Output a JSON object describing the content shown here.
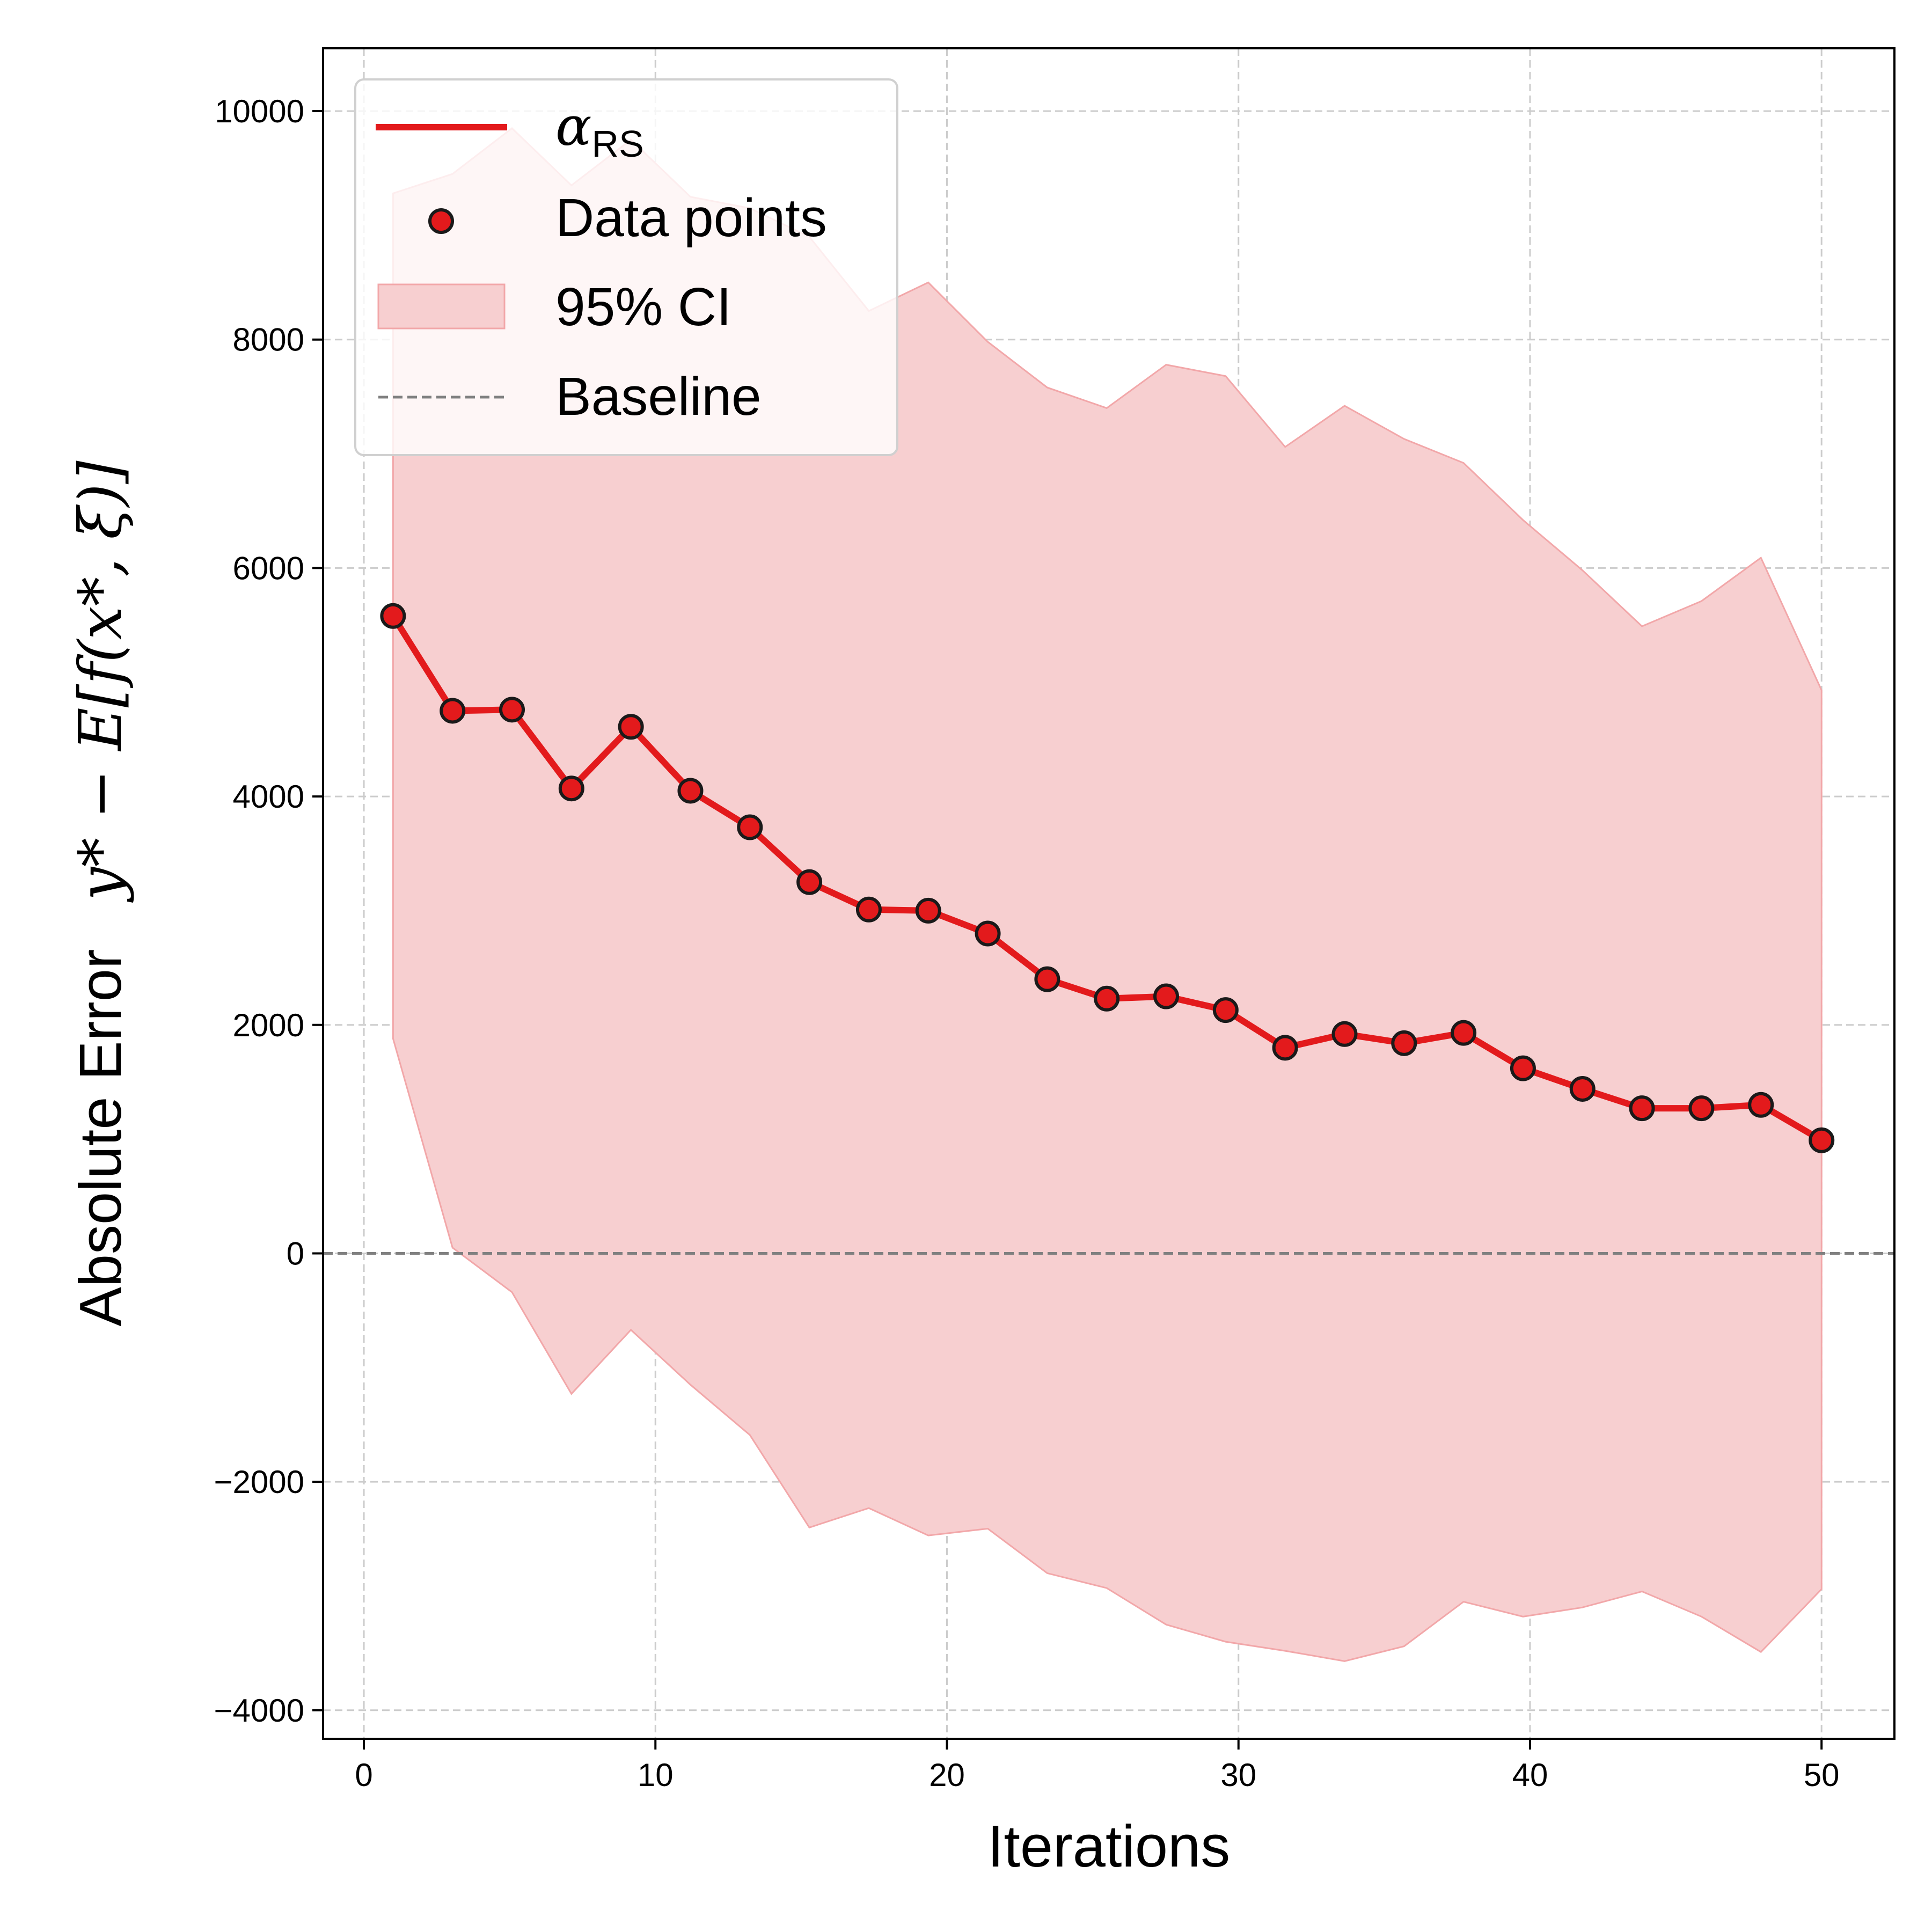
{
  "chart_data": {
    "type": "line",
    "xlabel": "Iterations",
    "ylabel_prefix": "Absolute Error",
    "ylabel_math": "y* − E[f(x*, ξ)]",
    "xlim": [
      -1.4,
      52.5
    ],
    "ylim": [
      -4250,
      10550
    ],
    "xticks": [
      0,
      10,
      20,
      30,
      40,
      50
    ],
    "yticks": [
      -4000,
      -2000,
      0,
      2000,
      4000,
      6000,
      8000,
      10000
    ],
    "ytick_labels": [
      "−4000",
      "−2000",
      "0",
      "2000",
      "4000",
      "6000",
      "8000",
      "10000"
    ],
    "grid": true,
    "legend_position": "top-left",
    "colors": {
      "line": "#e31a1c",
      "marker_fill": "#e31a1c",
      "marker_edge": "#1a1a1a",
      "ci_fill": "#f7cfd0",
      "ci_edge": "#f2a7a9",
      "baseline": "#808080",
      "grid": "#cccccc"
    },
    "legend": [
      {
        "label": "α",
        "label_sub": "RS",
        "kind": "line"
      },
      {
        "label": "Data points",
        "kind": "marker"
      },
      {
        "label": "95% CI",
        "kind": "patch"
      },
      {
        "label": "Baseline",
        "kind": "dashed"
      }
    ],
    "x": [
      1.0,
      3.04,
      5.08,
      7.12,
      9.16,
      11.2,
      13.24,
      15.28,
      17.32,
      19.36,
      21.4,
      23.44,
      25.48,
      27.52,
      29.56,
      31.6,
      33.64,
      35.68,
      37.72,
      39.76,
      41.8,
      43.84,
      45.88,
      47.92,
      50.0
    ],
    "series": [
      {
        "values": [
          5580,
          4750,
          4760,
          4070,
          4610,
          4050,
          3730,
          3250,
          3010,
          3000,
          2800,
          2400,
          2230,
          2250,
          2130,
          1800,
          1920,
          1840,
          1930,
          1620,
          1440,
          1270,
          1270,
          1300,
          990
        ]
      }
    ],
    "ci_upper": [
      9280,
      9450,
      9850,
      9350,
      9750,
      9250,
      9150,
      8900,
      8250,
      8500,
      7980,
      7580,
      7400,
      7780,
      7680,
      7060,
      7420,
      7130,
      6920,
      6420,
      5980,
      5490,
      5710,
      6090,
      4930
    ],
    "ci_lower": [
      1880,
      50,
      -340,
      -1230,
      -670,
      -1150,
      -1590,
      -2400,
      -2230,
      -2470,
      -2410,
      -2800,
      -2930,
      -3250,
      -3400,
      -3480,
      -3570,
      -3440,
      -3050,
      -3180,
      -3100,
      -2960,
      -3180,
      -3490,
      -2940
    ],
    "baseline": 0
  }
}
